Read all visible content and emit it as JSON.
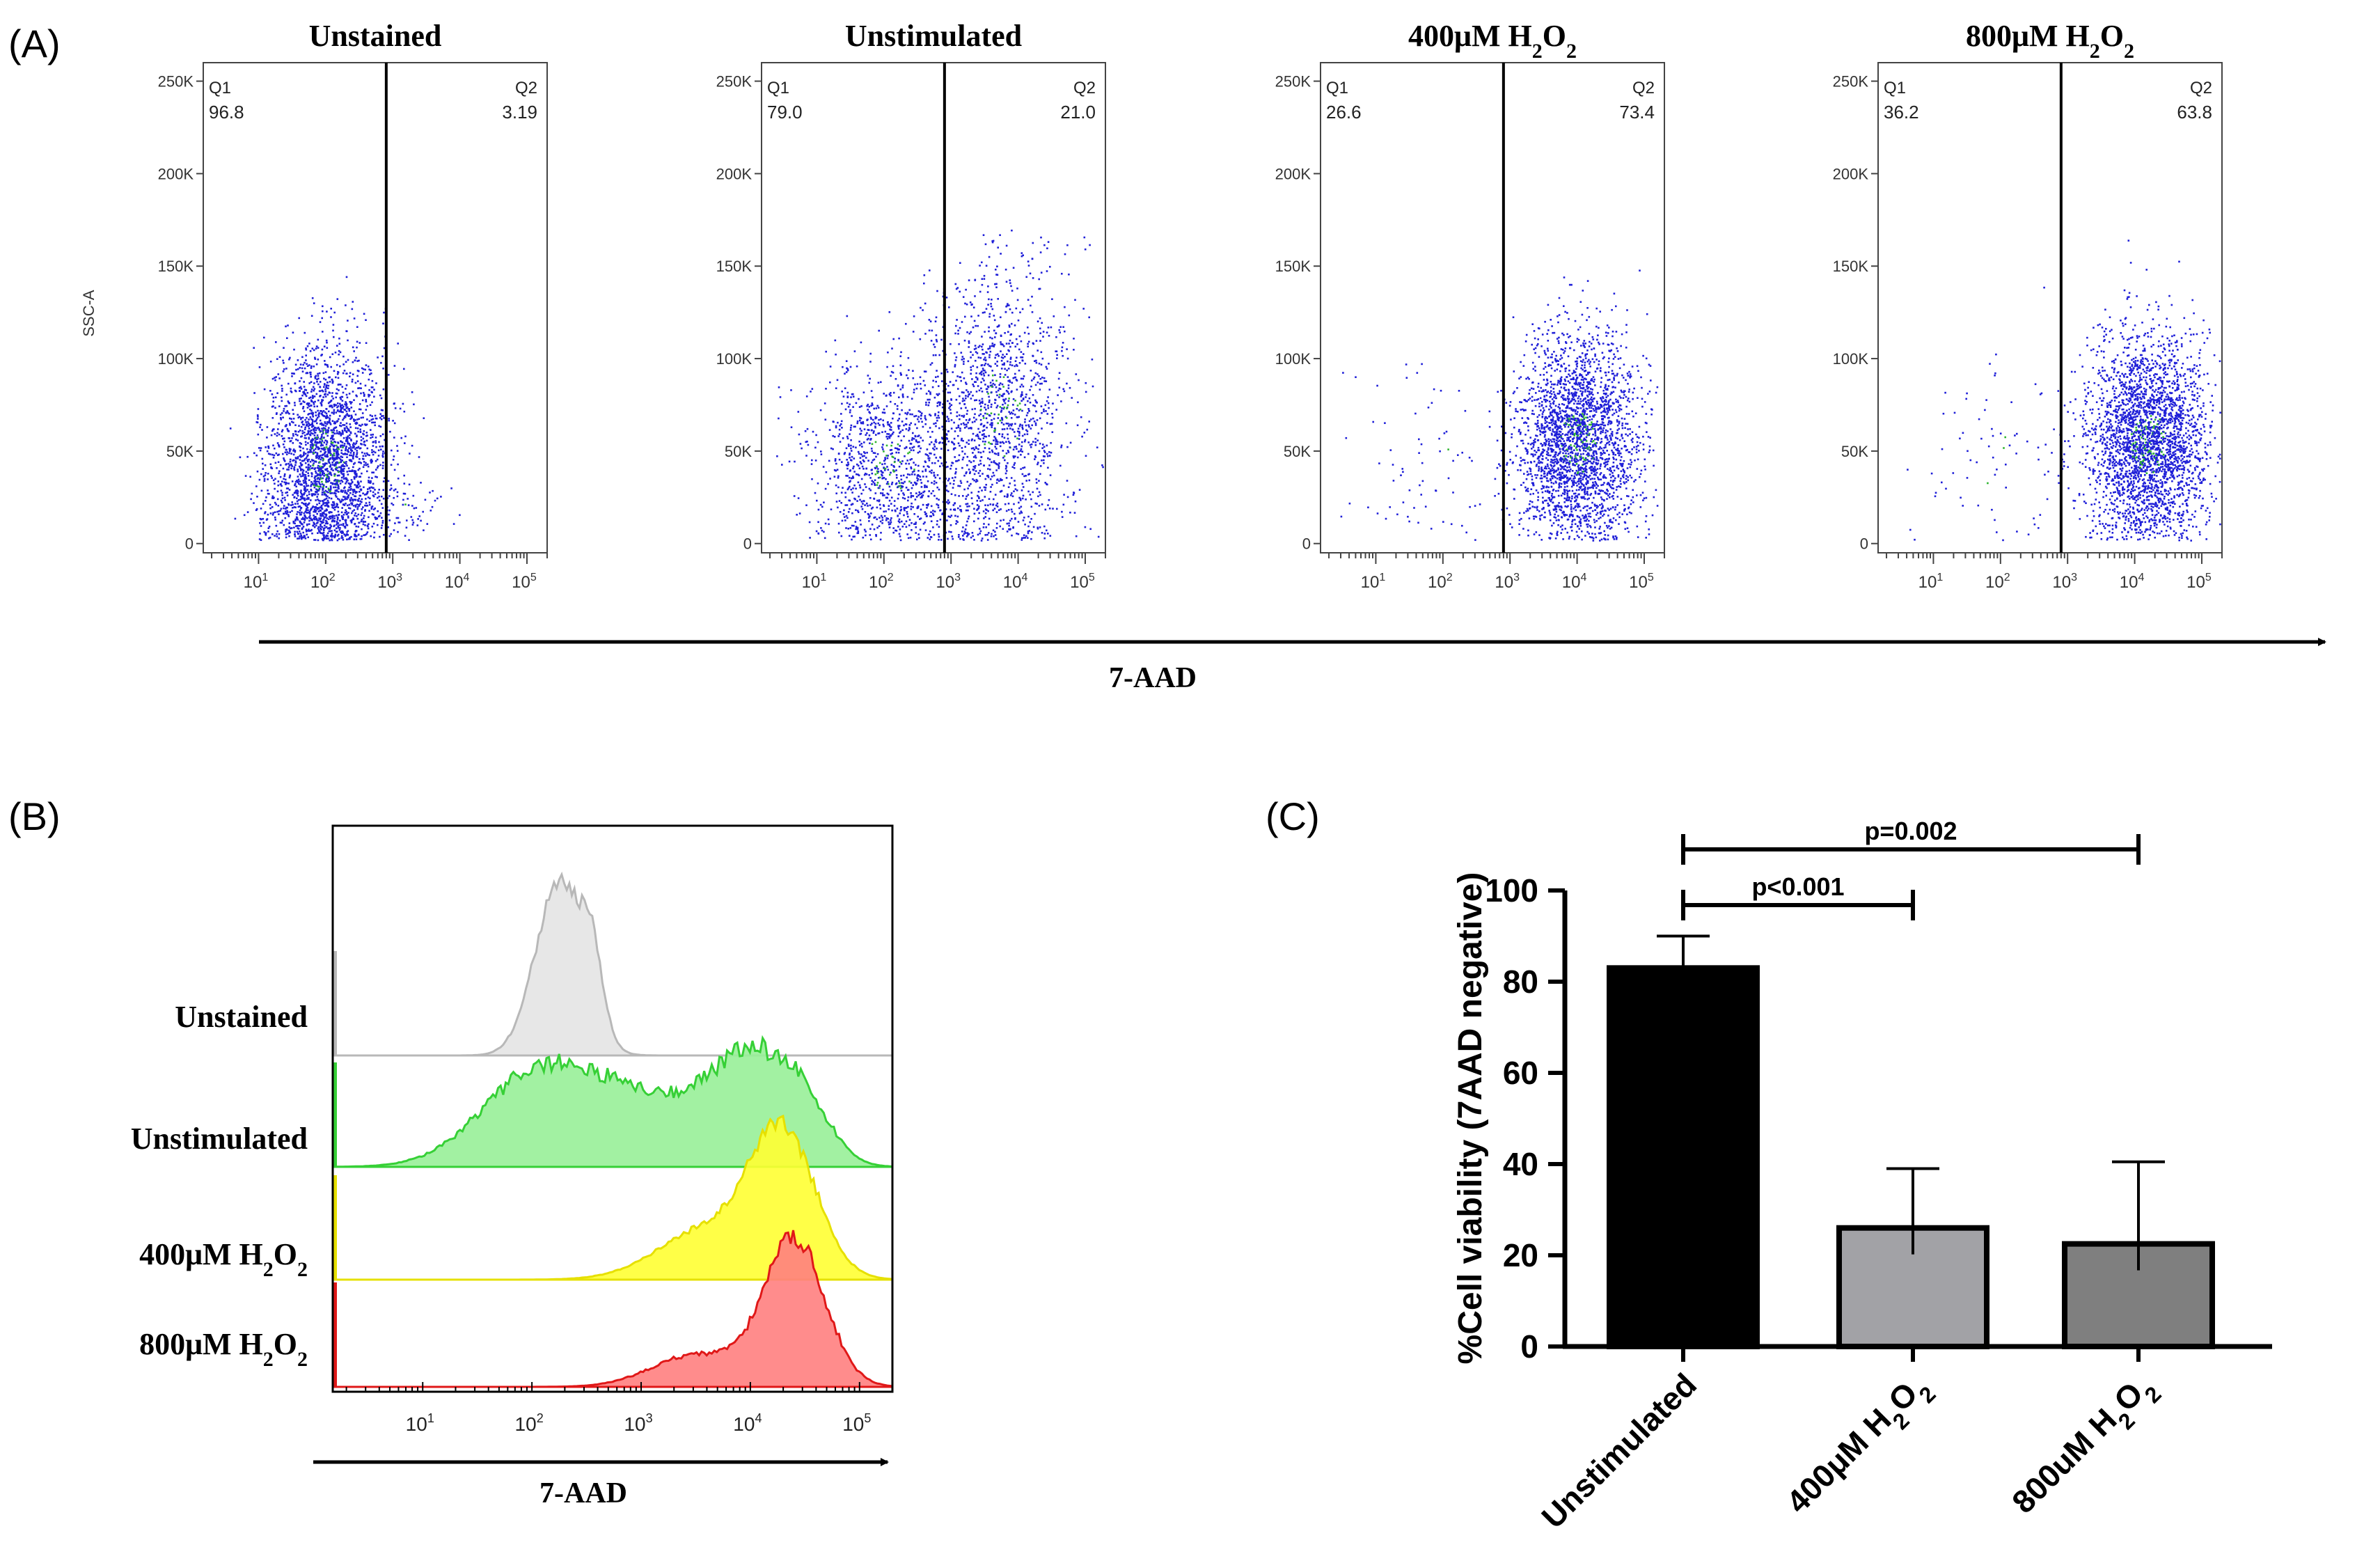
{
  "chart_data": [
    {
      "panel_label": "(A)",
      "type": "scatter",
      "shared_xlabel": "7-AAD",
      "ylabel": "SSC-A",
      "y_ticks": [
        "0",
        "50K",
        "100K",
        "150K",
        "200K",
        "250K"
      ],
      "y_tick_values": [
        0,
        50000,
        100000,
        150000,
        200000,
        250000
      ],
      "x_tick_exponents": [
        1,
        2,
        3,
        4,
        5
      ],
      "x_scale": "log",
      "xlim": [
        1.5,
        200000
      ],
      "ylim": [
        -5000,
        260000
      ],
      "gate_x": 800,
      "colors": {
        "dots": "#1f1fd8",
        "dense_dots": "#2fb52f",
        "gate": "#000000"
      },
      "panels": [
        {
          "title": "Unstained",
          "q1_label": "Q1",
          "q1_value": "96.8",
          "q2_label": "Q2",
          "q2_value": "3.19"
        },
        {
          "title": "Unstimulated",
          "q1_label": "Q1",
          "q1_value": "79.0",
          "q2_label": "Q2",
          "q2_value": "21.0"
        },
        {
          "title": "400μM H",
          "title_sub1": "2",
          "title_mid": "O",
          "title_sub2": "2",
          "q1_label": "Q1",
          "q1_value": "26.6",
          "q2_label": "Q2",
          "q2_value": "73.4"
        },
        {
          "title": "800μM H",
          "title_sub1": "2",
          "title_mid": "O",
          "title_sub2": "2",
          "q1_label": "Q1",
          "q1_value": "36.2",
          "q2_label": "Q2",
          "q2_value": "63.8"
        }
      ]
    },
    {
      "panel_label": "(B)",
      "type": "area",
      "xlabel": "7-AAD",
      "x_scale": "log",
      "x_tick_exponents": [
        1,
        2,
        3,
        4,
        5
      ],
      "xlim": [
        1.5,
        200000
      ],
      "series": [
        {
          "name": "Unstained",
          "color": "#e4e4e4",
          "stroke": "#b8b8b8"
        },
        {
          "name": "Unstimulated",
          "color": "#98f098",
          "stroke": "#36d036"
        },
        {
          "name": "400μM H",
          "name_sub1": "2",
          "name_mid": "O",
          "name_sub2": "2",
          "color": "#ffff33",
          "stroke": "#e6e000"
        },
        {
          "name": "800μM H",
          "name_sub1": "2",
          "name_mid": "O",
          "name_sub2": "2",
          "color": "#ff8080",
          "stroke": "#e01818"
        }
      ]
    },
    {
      "panel_label": "(C)",
      "type": "bar",
      "ylabel": "%Cell viability (7AAD negative)",
      "ylim": [
        0,
        100
      ],
      "y_ticks": [
        0,
        20,
        40,
        60,
        80,
        100
      ],
      "categories": [
        "Unstimulated",
        "400μM H2O2",
        "800uM H2O2"
      ],
      "category_labels": [
        {
          "main": "Unstimulated"
        },
        {
          "main": "400μM H",
          "sub1": "2",
          "mid": "O",
          "sub2": "2"
        },
        {
          "main": "800uM H",
          "sub1": "2",
          "mid": "O",
          "sub2": "2"
        }
      ],
      "values": [
        83,
        26,
        22.5
      ],
      "errors": [
        7,
        13,
        18
      ],
      "colors": [
        "#000000",
        "#a2a2a6",
        "#7f7f7f"
      ],
      "significance": [
        {
          "from": 0,
          "to": 1,
          "label": "p<0.001"
        },
        {
          "from": 0,
          "to": 2,
          "label": "p=0.002"
        }
      ]
    }
  ]
}
